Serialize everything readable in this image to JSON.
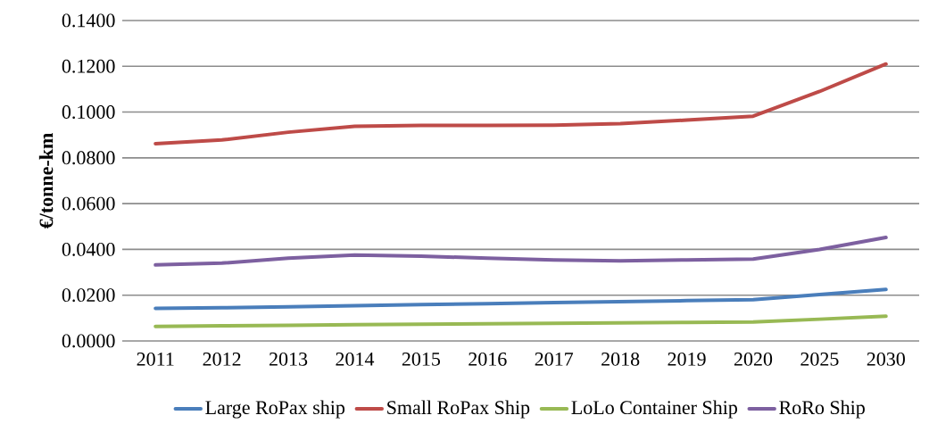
{
  "chart_data": {
    "type": "line",
    "ylabel": "€/tonne-km",
    "categories": [
      "2011",
      "2012",
      "2013",
      "2014",
      "2015",
      "2016",
      "2017",
      "2018",
      "2019",
      "2020",
      "2025",
      "2030"
    ],
    "series": [
      {
        "name": "Large RoPax ship",
        "color": "#4a7ebb",
        "values": [
          0.0142,
          0.0145,
          0.0149,
          0.0154,
          0.0159,
          0.0163,
          0.0168,
          0.0172,
          0.0176,
          0.018,
          0.0203,
          0.0225
        ]
      },
      {
        "name": "Small RoPax Ship",
        "color": "#be4b48",
        "values": [
          0.0862,
          0.0878,
          0.0912,
          0.0938,
          0.0942,
          0.0942,
          0.0943,
          0.095,
          0.0965,
          0.0982,
          0.109,
          0.121
        ]
      },
      {
        "name": "LoLo Container Ship",
        "color": "#98b954",
        "values": [
          0.0063,
          0.0066,
          0.0068,
          0.0071,
          0.0073,
          0.0075,
          0.0077,
          0.0079,
          0.0081,
          0.0083,
          0.0095,
          0.0108
        ]
      },
      {
        "name": "RoRo Ship",
        "color": "#7d60a0",
        "values": [
          0.0332,
          0.034,
          0.0362,
          0.0375,
          0.037,
          0.0362,
          0.0354,
          0.035,
          0.0354,
          0.0358,
          0.04,
          0.0452
        ]
      }
    ],
    "ylim": [
      0,
      0.14
    ],
    "yticks": [
      {
        "value": 0,
        "label": "0.0000"
      },
      {
        "value": 0.02,
        "label": "0.0200"
      },
      {
        "value": 0.04,
        "label": "0.0400"
      },
      {
        "value": 0.06,
        "label": "0.0600"
      },
      {
        "value": 0.08,
        "label": "0.0800"
      },
      {
        "value": 0.1,
        "label": "0.1000"
      },
      {
        "value": 0.12,
        "label": "0.1200"
      },
      {
        "value": 0.14,
        "label": "0.1400"
      }
    ],
    "grid": "y",
    "legend": "bottom",
    "marker": "none",
    "line_style": "solid"
  }
}
